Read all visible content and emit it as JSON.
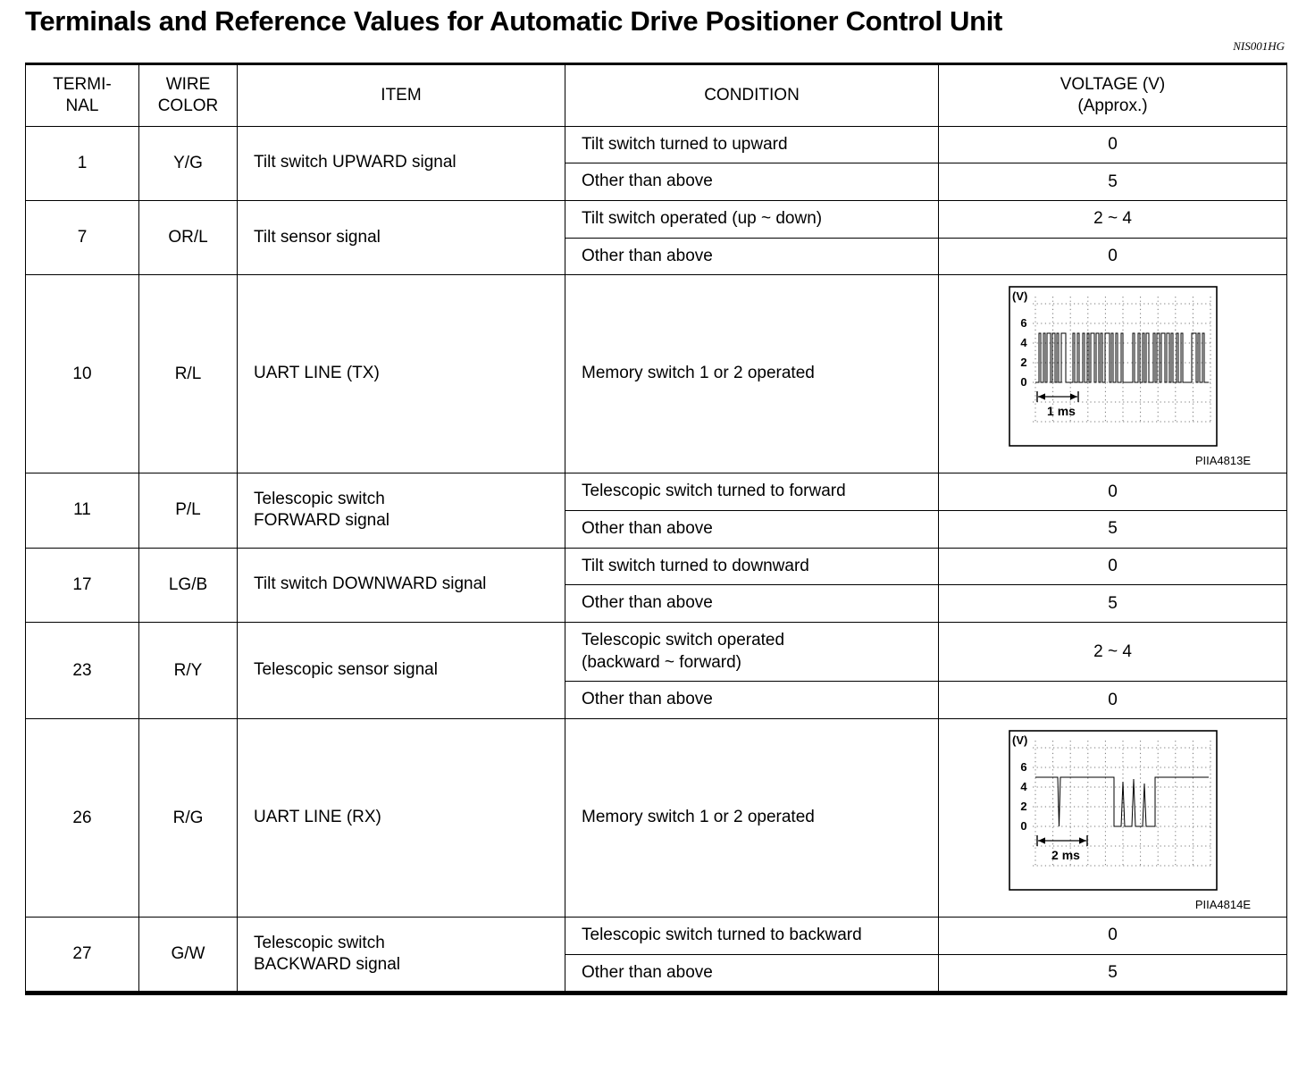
{
  "page": {
    "title": "Terminals and Reference Values for Automatic Drive Positioner Control Unit",
    "reference_code": "NIS001HG"
  },
  "table": {
    "headers": [
      "TERMI-\nNAL",
      "WIRE\nCOLOR",
      "ITEM",
      "CONDITION",
      "VOLTAGE (V)\n(Approx.)"
    ],
    "rows": [
      {
        "terminal": "1",
        "wire_color": "Y/G",
        "item": "Tilt switch UPWARD signal",
        "conditions": [
          {
            "condition": "Tilt switch turned to upward",
            "voltage": "0"
          },
          {
            "condition": "Other than above",
            "voltage": "5"
          }
        ]
      },
      {
        "terminal": "7",
        "wire_color": "OR/L",
        "item": "Tilt sensor signal",
        "conditions": [
          {
            "condition": "Tilt switch operated (up ~ down)",
            "voltage": "2 ~ 4"
          },
          {
            "condition": "Other than above",
            "voltage": "0"
          }
        ]
      },
      {
        "terminal": "10",
        "wire_color": "R/L",
        "item": "UART LINE (TX)",
        "conditions": [
          {
            "condition": "Memory switch 1 or 2 operated",
            "waveform": {
              "kind": "tx",
              "unit": "(V)",
              "y_ticks": [
                "6",
                "4",
                "2",
                "0"
              ],
              "time_label": "1 ms",
              "code": "PIIA4813E"
            }
          }
        ]
      },
      {
        "terminal": "11",
        "wire_color": "P/L",
        "item": "Telescopic switch\nFORWARD signal",
        "conditions": [
          {
            "condition": "Telescopic switch turned to forward",
            "voltage": "0"
          },
          {
            "condition": "Other than above",
            "voltage": "5"
          }
        ]
      },
      {
        "terminal": "17",
        "wire_color": "LG/B",
        "item": "Tilt switch DOWNWARD signal",
        "conditions": [
          {
            "condition": "Tilt switch turned to downward",
            "voltage": "0"
          },
          {
            "condition": "Other than above",
            "voltage": "5"
          }
        ]
      },
      {
        "terminal": "23",
        "wire_color": "R/Y",
        "item": "Telescopic sensor signal",
        "conditions": [
          {
            "condition": "Telescopic switch operated\n(backward ~ forward)",
            "voltage": "2 ~ 4"
          },
          {
            "condition": "Other than above",
            "voltage": "0"
          }
        ]
      },
      {
        "terminal": "26",
        "wire_color": "R/G",
        "item": "UART LINE (RX)",
        "conditions": [
          {
            "condition": "Memory switch 1 or 2 operated",
            "waveform": {
              "kind": "rx",
              "unit": "(V)",
              "y_ticks": [
                "6",
                "4",
                "2",
                "0"
              ],
              "time_label": "2 ms",
              "code": "PIIA4814E"
            }
          }
        ]
      },
      {
        "terminal": "27",
        "wire_color": "G/W",
        "item": "Telescopic switch\nBACKWARD signal",
        "conditions": [
          {
            "condition": "Telescopic switch turned to backward",
            "voltage": "0"
          },
          {
            "condition": "Other than above",
            "voltage": "5"
          }
        ]
      }
    ]
  }
}
